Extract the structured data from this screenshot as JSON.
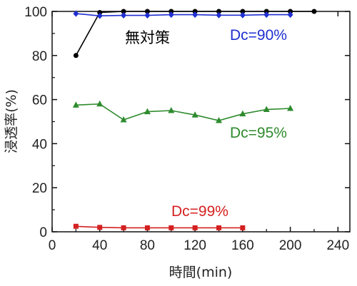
{
  "chart_data": {
    "type": "line",
    "xlabel": "時間(min)",
    "ylabel": "浸透率(%)",
    "xlim": [
      0,
      250
    ],
    "ylim": [
      0,
      100
    ],
    "xticks": [
      0,
      40,
      80,
      120,
      160,
      200,
      240
    ],
    "yticks": [
      0,
      20,
      40,
      60,
      80,
      100
    ],
    "grid": false,
    "series": [
      {
        "name": "無対策",
        "color": "#000000",
        "marker": "circle",
        "points": [
          [
            20,
            80
          ],
          [
            40,
            99.5
          ],
          [
            60,
            100
          ],
          [
            80,
            100
          ],
          [
            100,
            100
          ],
          [
            120,
            100
          ],
          [
            140,
            100
          ],
          [
            160,
            100
          ],
          [
            180,
            100
          ],
          [
            200,
            100
          ],
          [
            220,
            100
          ]
        ]
      },
      {
        "name": "Dc=90%",
        "color": "#1f2fd0",
        "marker": "diamond",
        "points": [
          [
            20,
            99
          ],
          [
            40,
            98
          ],
          [
            60,
            98.2
          ],
          [
            80,
            98.2
          ],
          [
            100,
            98.5
          ],
          [
            120,
            98.5
          ],
          [
            140,
            98.3
          ],
          [
            160,
            98.3
          ],
          [
            180,
            98.5
          ],
          [
            200,
            98.5
          ]
        ]
      },
      {
        "name": "Dc=95%",
        "color": "#2e8b2e",
        "marker": "triangle",
        "points": [
          [
            20,
            57.5
          ],
          [
            40,
            58
          ],
          [
            60,
            50.8
          ],
          [
            80,
            54.5
          ],
          [
            100,
            55
          ],
          [
            120,
            53
          ],
          [
            140,
            50.5
          ],
          [
            160,
            53.5
          ],
          [
            180,
            55.5
          ],
          [
            200,
            56
          ]
        ]
      },
      {
        "name": "Dc=99%",
        "color": "#d42020",
        "marker": "square",
        "points": [
          [
            20,
            2.5
          ],
          [
            40,
            2
          ],
          [
            60,
            1.8
          ],
          [
            80,
            1.8
          ],
          [
            100,
            1.8
          ],
          [
            120,
            1.8
          ],
          [
            140,
            1.8
          ],
          [
            160,
            1.8
          ]
        ]
      }
    ]
  }
}
